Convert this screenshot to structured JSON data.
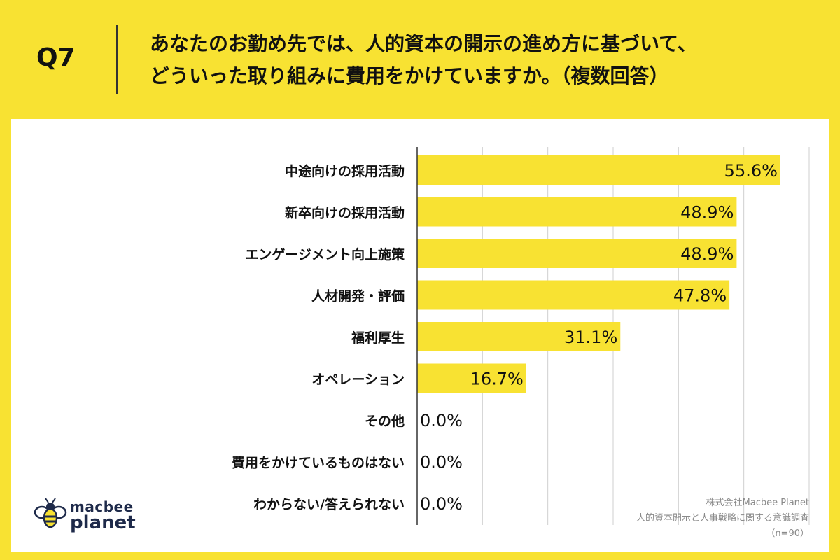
{
  "question": {
    "label": "Q7",
    "line1": "あなたのお勤め先では、人的資本の開示の進め方に基づいて、",
    "line2": "どういった取り組みに費用をかけていますか。（複数回答）"
  },
  "chart_data": {
    "type": "bar",
    "orientation": "horizontal",
    "categories": [
      "中途向けの採用活動",
      "新卒向けの採用活動",
      "エンゲージメント向上施策",
      "人材開発・評価",
      "福利厚生",
      "オペレーション",
      "その他",
      "費用をかけているものはない",
      "わからない/答えられない"
    ],
    "values": [
      55.6,
      48.9,
      48.9,
      47.8,
      31.1,
      16.7,
      0.0,
      0.0,
      0.0
    ],
    "value_labels": [
      "55.6%",
      "48.9%",
      "48.9%",
      "47.8%",
      "31.1%",
      "16.7%",
      "0.0%",
      "0.0%",
      "0.0%"
    ],
    "xlim": [
      0,
      60
    ],
    "grid": true,
    "bar_color": "#f8e232"
  },
  "logo": {
    "top": "macbee",
    "bottom": "planet"
  },
  "source": {
    "company": "株式会社Macbee Planet",
    "survey": "人的資本開示と人事戦略に関する意識調査",
    "sample": "（n=90）"
  }
}
